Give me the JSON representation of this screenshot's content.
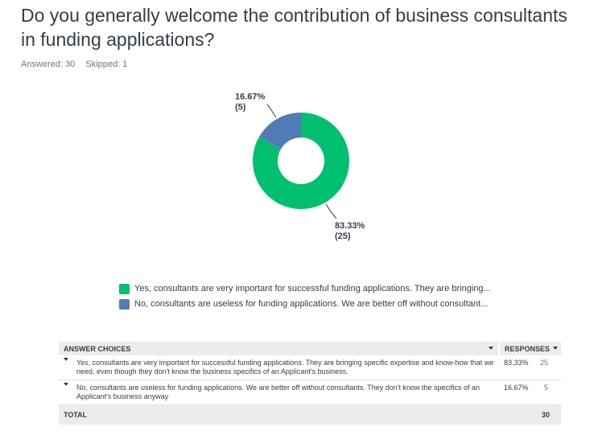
{
  "question": {
    "title": "Do you generally welcome the contribution of business consultants in funding applications?",
    "answered": "Answered: 30",
    "skipped": "Skipped: 1"
  },
  "chart_data": {
    "type": "pie",
    "donut": true,
    "slices": [
      {
        "label": "Yes, consultants are very important for successful funding applications. They are bringing...",
        "value": 83.33,
        "count": 25,
        "percent_label": "83.33%",
        "count_label": "(25)",
        "color": "#00bf6f"
      },
      {
        "label": "No, consultants are useless for funding applications. We are better off without consultant...",
        "value": 16.67,
        "count": 5,
        "percent_label": "16.67%",
        "count_label": "(5)",
        "color": "#507cb6"
      }
    ],
    "legend": "bottom"
  },
  "table": {
    "headers": {
      "choices": "ANSWER CHOICES",
      "responses": "RESPONSES"
    },
    "rows": [
      {
        "text": "Yes, consultants are very important for successful funding applications. They are bringing specific expertise and know-how that we need, even though they don't know the business specifics of an Applicant's business.",
        "percent": "83.33%",
        "count": "25"
      },
      {
        "text": "No, consultants are useless for funding applications. We are better off without consultants. They don't know the specifics of an Applicant's business anyway",
        "percent": "16.67%",
        "count": "5"
      }
    ],
    "total_label": "TOTAL",
    "total_value": "30"
  }
}
